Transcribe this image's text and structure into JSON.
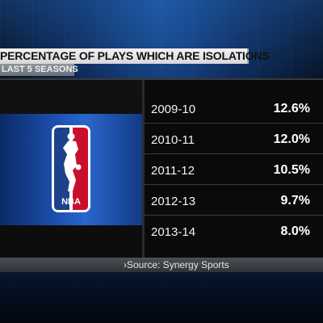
{
  "header": {
    "title": "PERCENTAGE OF PLAYS WHICH ARE ISOLATIONS",
    "subtitle": "LAST 5 SEASONS"
  },
  "logo": {
    "name": "nba-logo-icon",
    "text": "NBA",
    "colors": {
      "blue": "#1d428a",
      "red": "#c8102e",
      "white": "#ffffff"
    }
  },
  "source": "›Source: Synergy Sports",
  "chart_data": {
    "type": "table",
    "title": "PERCENTAGE OF PLAYS WHICH ARE ISOLATIONS",
    "subtitle": "LAST 5 SEASONS",
    "columns": [
      "",
      ""
    ],
    "rows": [
      {
        "season": "2009-10",
        "value": 12.6,
        "label": "12.6%"
      },
      {
        "season": "2010-11",
        "value": 12.0,
        "label": "12.0%"
      },
      {
        "season": "2011-12",
        "value": 10.5,
        "label": "10.5%"
      },
      {
        "season": "2012-13",
        "value": 9.7,
        "label": "9.7%"
      },
      {
        "season": "2013-14",
        "value": 8.0,
        "label": "8.0%"
      }
    ],
    "source": "›Source: Synergy Sports"
  }
}
